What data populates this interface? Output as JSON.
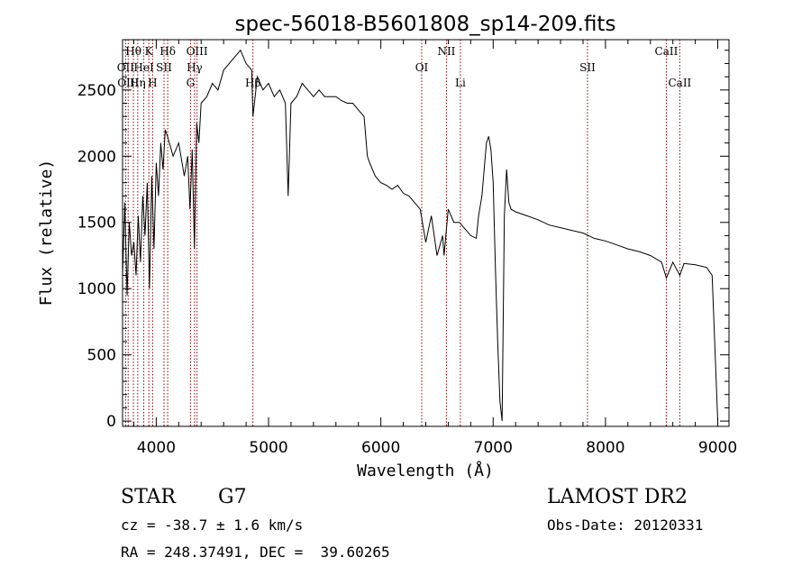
{
  "chart_data": {
    "type": "line",
    "title": "spec-56018-B5601808_sp14-209.fits",
    "xlabel": "Wavelength (Å)",
    "ylabel": "Flux (relative)",
    "xlim": [
      3700,
      9100
    ],
    "ylim": [
      -40,
      2880
    ],
    "x_ticks": [
      4000,
      5000,
      6000,
      7000,
      8000,
      9000
    ],
    "y_ticks": [
      0,
      500,
      1000,
      1500,
      2000,
      2500
    ],
    "grid": false,
    "line_color": "#000000",
    "marker_color": "#8b0000",
    "series": [
      {
        "x": [
          3700,
          3720,
          3740,
          3760,
          3780,
          3800,
          3820,
          3840,
          3860,
          3880,
          3900,
          3920,
          3940,
          3960,
          3980,
          4000,
          4020,
          4040,
          4060,
          4080,
          4100,
          4150,
          4200,
          4250,
          4280,
          4300,
          4320,
          4340,
          4360,
          4380,
          4400,
          4450,
          4500,
          4550,
          4600,
          4650,
          4700,
          4750,
          4800,
          4850,
          4861,
          4900,
          4950,
          5000,
          5050,
          5100,
          5150,
          5175,
          5200,
          5250,
          5300,
          5350,
          5400,
          5450,
          5500,
          5550,
          5600,
          5650,
          5700,
          5750,
          5800,
          5850,
          5880,
          5900,
          5950,
          6000,
          6050,
          6100,
          6150,
          6200,
          6250,
          6300,
          6350,
          6400,
          6450,
          6500,
          6550,
          6563,
          6600,
          6650,
          6700,
          6750,
          6800,
          6850,
          6870,
          6900,
          6920,
          6940,
          6960,
          6980,
          7000,
          7020,
          7040,
          7060,
          7080,
          7100,
          7120,
          7140,
          7160,
          7200,
          7300,
          7400,
          7500,
          7600,
          7700,
          7800,
          7900,
          8000,
          8100,
          8200,
          8300,
          8400,
          8500,
          8542,
          8600,
          8662,
          8700,
          8800,
          8900,
          8950,
          9000
        ],
        "y": [
          1100,
          1650,
          950,
          1500,
          1250,
          1350,
          1100,
          1550,
          1200,
          1700,
          1400,
          1800,
          1000,
          1850,
          1300,
          1950,
          1700,
          2100,
          1900,
          2200,
          2150,
          2000,
          2100,
          1850,
          2000,
          1600,
          2050,
          1300,
          2250,
          2100,
          2400,
          2450,
          2550,
          2500,
          2650,
          2700,
          2750,
          2800,
          2700,
          2650,
          2300,
          2600,
          2500,
          2550,
          2450,
          2500,
          2400,
          1700,
          2400,
          2450,
          2550,
          2500,
          2450,
          2500,
          2450,
          2450,
          2450,
          2420,
          2400,
          2400,
          2350,
          2300,
          2000,
          1950,
          1850,
          1800,
          1780,
          1750,
          1780,
          1720,
          1700,
          1650,
          1600,
          1350,
          1550,
          1250,
          1400,
          1250,
          1600,
          1500,
          1500,
          1450,
          1400,
          1380,
          1550,
          1700,
          1900,
          2100,
          2150,
          2050,
          1800,
          1150,
          600,
          150,
          0,
          1550,
          1900,
          1650,
          1600,
          1580,
          1550,
          1520,
          1480,
          1460,
          1440,
          1420,
          1380,
          1360,
          1330,
          1300,
          1280,
          1250,
          1200,
          1080,
          1200,
          1100,
          1190,
          1180,
          1160,
          1100,
          0
        ]
      }
    ],
    "line_markers": [
      {
        "label": "Hθ",
        "x": 3797,
        "row": 0
      },
      {
        "label": "OII",
        "x": 3727,
        "row": 1
      },
      {
        "label": "OIII",
        "x": 3750,
        "row": 2
      },
      {
        "label": "K",
        "x": 3934,
        "row": 0
      },
      {
        "label": "HeI",
        "x": 3889,
        "row": 1
      },
      {
        "label": "Hη",
        "x": 3835,
        "row": 2
      },
      {
        "label": "Hδ",
        "x": 4102,
        "row": 0
      },
      {
        "label": "SII",
        "x": 4069,
        "row": 1
      },
      {
        "label": "H",
        "x": 3968,
        "row": 2
      },
      {
        "label": "OIII",
        "x": 4363,
        "row": 0
      },
      {
        "label": "Hγ",
        "x": 4341,
        "row": 1
      },
      {
        "label": "G",
        "x": 4305,
        "row": 2
      },
      {
        "label": "Hβ",
        "x": 4861,
        "row": 2
      },
      {
        "label": "OI",
        "x": 6364,
        "row": 1
      },
      {
        "label": "NII",
        "x": 6584,
        "row": 0
      },
      {
        "label": "Li",
        "x": 6708,
        "row": 2
      },
      {
        "label": "SII",
        "x": 7840,
        "row": 1
      },
      {
        "label": "CaII",
        "x": 8542,
        "row": 0
      },
      {
        "label": "CaII",
        "x": 8662,
        "row": 2
      }
    ]
  },
  "info": {
    "object_class": "STAR",
    "subclass": "G7",
    "survey": "LAMOST DR2",
    "redshift": "cz = -38.7 ± 1.6 km/s",
    "obs_date": "Obs-Date: 20120331",
    "coords": "RA = 248.37491, DEC =  39.60265"
  }
}
